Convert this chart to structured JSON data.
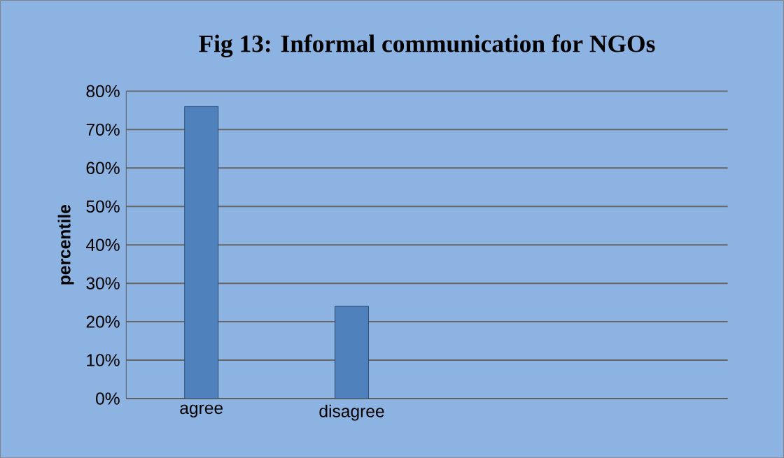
{
  "chart_data": {
    "type": "bar",
    "title": "Fig 13: Informal communication for NGOs",
    "ylabel": "percentile",
    "categories": [
      "agree",
      "disagree",
      null,
      null
    ],
    "values": [
      76,
      24,
      null,
      null
    ],
    "color": "#4f81bd",
    "ylim": [
      0,
      80
    ],
    "yticks": [
      {
        "value": 0,
        "label": "0%"
      },
      {
        "value": 10,
        "label": "10%"
      },
      {
        "value": 20,
        "label": "20%"
      },
      {
        "value": 30,
        "label": "30%"
      },
      {
        "value": 40,
        "label": "40%"
      },
      {
        "value": 50,
        "label": "50%"
      },
      {
        "value": 60,
        "label": "60%"
      },
      {
        "value": 70,
        "label": "70%"
      },
      {
        "value": 80,
        "label": "80%"
      }
    ],
    "grid": "y"
  }
}
